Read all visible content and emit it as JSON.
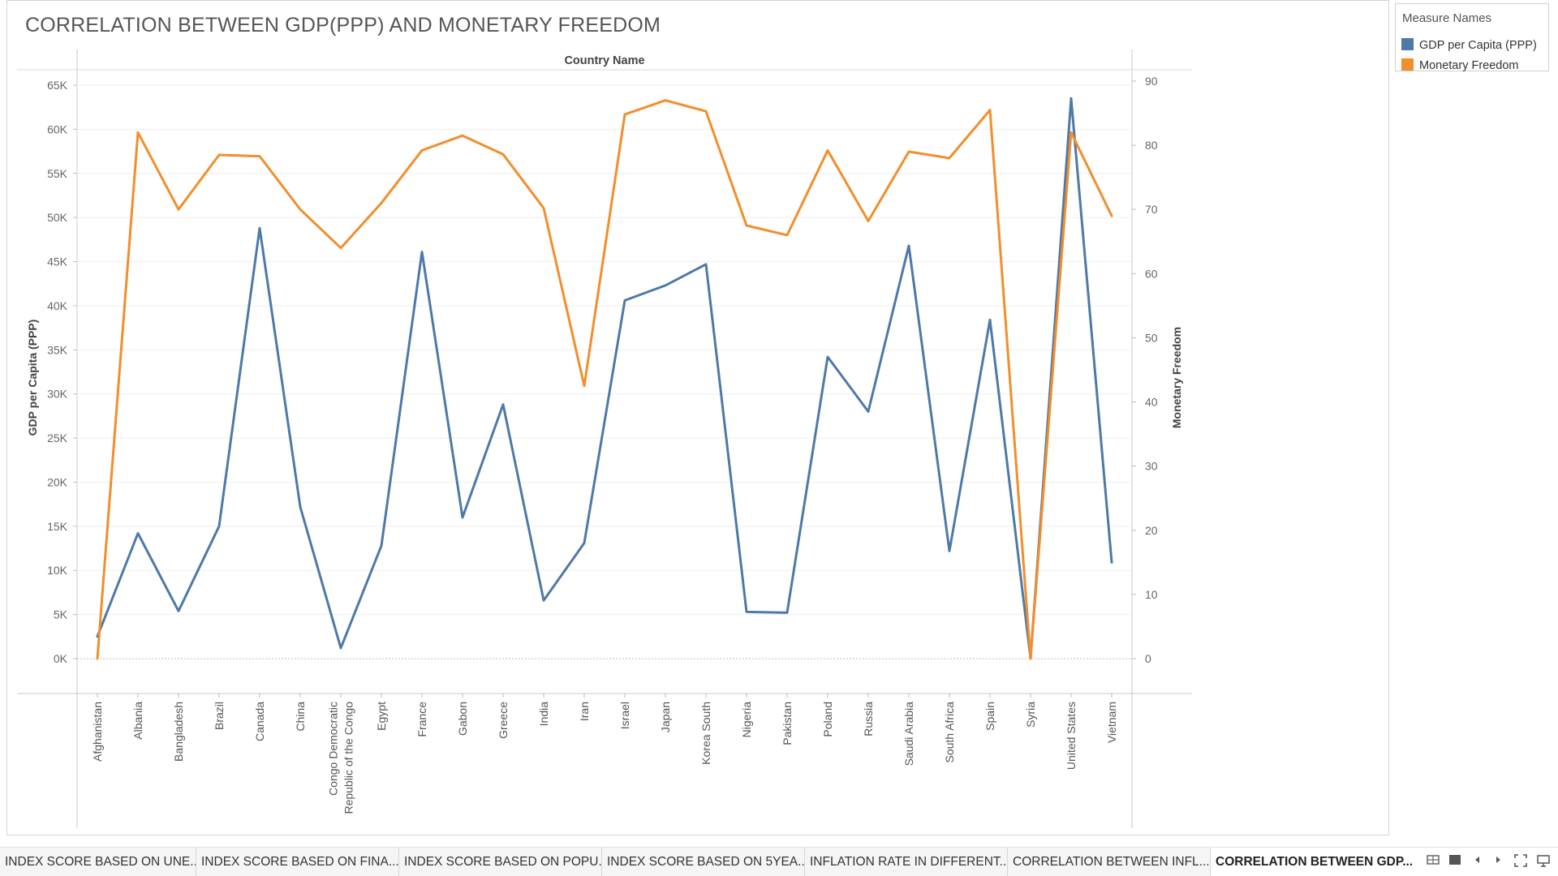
{
  "dashboard": {
    "title": "CORRELATION BETWEEN GDP(PPP) AND MONETARY FREEDOM"
  },
  "legend": {
    "title": "Measure Names",
    "items": [
      {
        "label": "GDP per Capita (PPP)",
        "color": "#4e79a7"
      },
      {
        "label": "Monetary Freedom",
        "color": "#f28e2b"
      }
    ]
  },
  "chart_data": {
    "type": "line",
    "header": "Country Name",
    "categories": [
      "Afghanistan",
      "Albania",
      "Bangladesh",
      "Brazil",
      "Canada",
      "China",
      "Congo Democratic Republic of the Congo",
      "Egypt",
      "France",
      "Gabon",
      "Greece",
      "India",
      "Iran",
      "Israel",
      "Japan",
      "Korea South",
      "Nigeria",
      "Pakistan",
      "Poland",
      "Russia",
      "Saudi Arabia",
      "South Africa",
      "Spain",
      "Syria",
      "United States",
      "Vietnam"
    ],
    "category_lines": [
      [
        "Afghanistan"
      ],
      [
        "Albania"
      ],
      [
        "Bangladesh"
      ],
      [
        "Brazil"
      ],
      [
        "Canada"
      ],
      [
        "China"
      ],
      [
        "Congo Democratic",
        "Republic of the Congo"
      ],
      [
        "Egypt"
      ],
      [
        "France"
      ],
      [
        "Gabon"
      ],
      [
        "Greece"
      ],
      [
        "India"
      ],
      [
        "Iran"
      ],
      [
        "Israel"
      ],
      [
        "Japan"
      ],
      [
        "Korea South"
      ],
      [
        "Nigeria"
      ],
      [
        "Pakistan"
      ],
      [
        "Poland"
      ],
      [
        "Russia"
      ],
      [
        "Saudi Arabia"
      ],
      [
        "South Africa"
      ],
      [
        "Spain"
      ],
      [
        "Syria"
      ],
      [
        "United States"
      ],
      [
        "Vietnam"
      ]
    ],
    "series": [
      {
        "name": "GDP per Capita (PPP)",
        "axis": "left",
        "color": "#4e79a7",
        "values": [
          2500,
          14200,
          5400,
          15000,
          48800,
          17200,
          1200,
          12800,
          46100,
          16000,
          28800,
          6600,
          13100,
          40600,
          42300,
          44700,
          5300,
          5200,
          34200,
          28000,
          46800,
          12200,
          38400,
          0,
          63500,
          10900
        ]
      },
      {
        "name": "Monetary Freedom",
        "axis": "right",
        "color": "#f28e2b",
        "values": [
          0,
          82,
          70,
          78.5,
          78.3,
          70,
          64,
          71,
          79.2,
          81.5,
          78.6,
          70.2,
          42.5,
          84.8,
          87,
          85.3,
          67.5,
          66,
          79.2,
          68.2,
          79,
          78,
          85.5,
          0,
          82,
          69
        ]
      }
    ],
    "y_left": {
      "label": "GDP per Capita (PPP)",
      "min": 0,
      "max": 65000,
      "ticks": [
        0,
        5000,
        10000,
        15000,
        20000,
        25000,
        30000,
        35000,
        40000,
        45000,
        50000,
        55000,
        60000,
        65000
      ],
      "tick_labels": [
        "0K",
        "5K",
        "10K",
        "15K",
        "20K",
        "25K",
        "30K",
        "35K",
        "40K",
        "45K",
        "50K",
        "55K",
        "60K",
        "65K"
      ]
    },
    "y_right": {
      "label": "Monetary Freedom",
      "min": 0,
      "max": 90,
      "ticks": [
        0,
        10,
        20,
        30,
        40,
        50,
        60,
        70,
        80,
        90
      ],
      "tick_labels": [
        "0",
        "10",
        "20",
        "30",
        "40",
        "50",
        "60",
        "70",
        "80",
        "90"
      ]
    },
    "grid": true
  },
  "tabs": [
    {
      "label": "INDEX SCORE BASED ON UNE...",
      "active": false
    },
    {
      "label": "INDEX SCORE BASED ON  FINA...",
      "active": false
    },
    {
      "label": "INDEX SCORE BASED ON POPU...",
      "active": false
    },
    {
      "label": "INDEX SCORE BASED ON 5YEA...",
      "active": false
    },
    {
      "label": "INFLATION RATE IN DIFFERENT...",
      "active": false
    },
    {
      "label": "CORRELATION BETWEEN INFL...",
      "active": false
    },
    {
      "label": "CORRELATION BETWEEN GDP...",
      "active": true
    }
  ],
  "nav_icons": [
    "grid-view-icon",
    "single-view-icon",
    "previous-sheet-icon",
    "next-sheet-icon",
    "fullscreen-icon",
    "presentation-icon"
  ]
}
